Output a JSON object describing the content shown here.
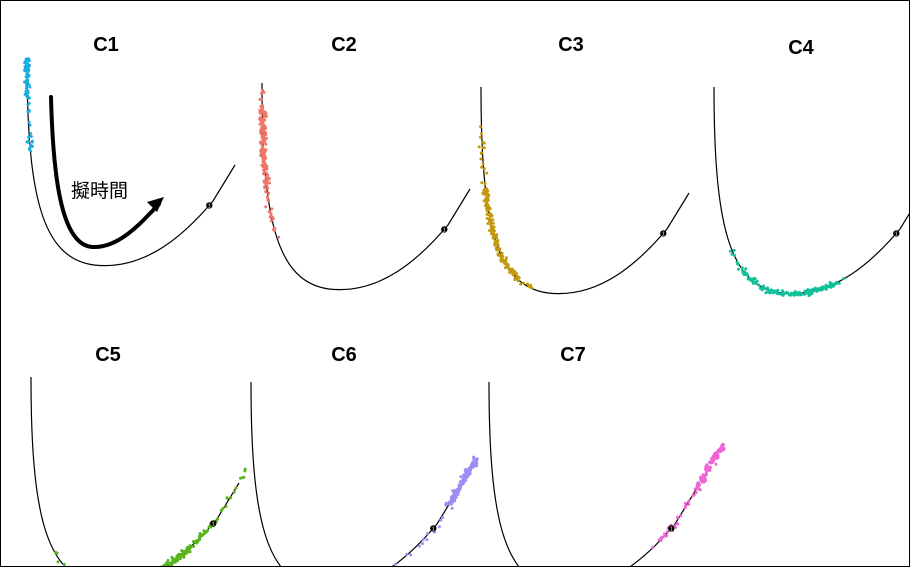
{
  "figure": {
    "annotation_text": "擬時間",
    "curve_color": "#000000",
    "panels": [
      {
        "label": "C1",
        "color": "#1aaee0",
        "segment": "early-branch"
      },
      {
        "label": "C2",
        "color": "#f07468",
        "segment": "descending-arm"
      },
      {
        "label": "C3",
        "color": "#c29a0e",
        "segment": "lower-descent-and-trough"
      },
      {
        "label": "C4",
        "color": "#12c09a",
        "segment": "trough"
      },
      {
        "label": "C5",
        "color": "#59b51a",
        "segment": "trough-to-ascending-arm"
      },
      {
        "label": "C6",
        "color": "#a08cf2",
        "segment": "ascending-arm"
      },
      {
        "label": "C7",
        "color": "#f064d6",
        "segment": "late-branch"
      }
    ],
    "milestone_marker": {
      "label": "1",
      "shape": "circle"
    }
  }
}
